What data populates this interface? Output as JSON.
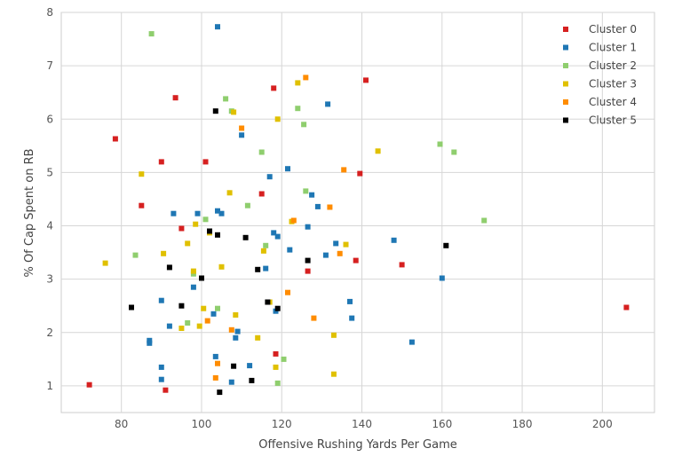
{
  "chart_data": {
    "type": "scatter",
    "xlabel": "Offensive Rushing Yards Per Game",
    "ylabel": "% Of Cap Spent on RB",
    "xlim": [
      65,
      213
    ],
    "ylim": [
      0.5,
      8.0
    ],
    "xticks": [
      80,
      100,
      120,
      140,
      160,
      180,
      200
    ],
    "yticks": [
      1,
      2,
      3,
      4,
      5,
      6,
      7,
      8
    ],
    "grid": true,
    "legend": "top-right",
    "series": [
      {
        "name": "Cluster 0",
        "color": "#d62020",
        "points": [
          [
            72,
            1.02
          ],
          [
            78.5,
            5.63
          ],
          [
            85,
            4.38
          ],
          [
            90,
            5.2
          ],
          [
            91,
            0.92
          ],
          [
            93.5,
            6.4
          ],
          [
            95,
            3.95
          ],
          [
            101,
            5.2
          ],
          [
            115,
            4.6
          ],
          [
            118,
            6.58
          ],
          [
            118.5,
            1.6
          ],
          [
            126.5,
            3.15
          ],
          [
            138.5,
            3.35
          ],
          [
            139.5,
            4.98
          ],
          [
            141,
            6.73
          ],
          [
            150,
            3.27
          ],
          [
            206,
            2.47
          ]
        ]
      },
      {
        "name": "Cluster 1",
        "color": "#1f77b4",
        "points": [
          [
            87,
            1.85
          ],
          [
            87,
            1.8
          ],
          [
            90,
            2.6
          ],
          [
            90,
            1.35
          ],
          [
            90,
            1.12
          ],
          [
            92,
            2.12
          ],
          [
            93,
            4.23
          ],
          [
            98,
            2.85
          ],
          [
            99,
            4.23
          ],
          [
            103,
            2.35
          ],
          [
            103.5,
            1.55
          ],
          [
            104,
            7.73
          ],
          [
            104,
            4.28
          ],
          [
            105,
            4.23
          ],
          [
            107.5,
            1.07
          ],
          [
            108.5,
            1.9
          ],
          [
            109,
            2.02
          ],
          [
            110,
            5.7
          ],
          [
            112,
            1.38
          ],
          [
            116,
            3.2
          ],
          [
            117,
            4.92
          ],
          [
            118,
            3.87
          ],
          [
            118.5,
            2.4
          ],
          [
            119,
            3.8
          ],
          [
            121.5,
            5.07
          ],
          [
            122,
            3.55
          ],
          [
            126.5,
            3.98
          ],
          [
            127.5,
            4.58
          ],
          [
            129,
            4.36
          ],
          [
            131,
            3.45
          ],
          [
            131.5,
            6.28
          ],
          [
            133.5,
            3.67
          ],
          [
            137,
            2.58
          ],
          [
            137.5,
            2.27
          ],
          [
            148,
            3.73
          ],
          [
            152.5,
            1.82
          ],
          [
            160,
            3.02
          ]
        ]
      },
      {
        "name": "Cluster 2",
        "color": "#8fce6e",
        "points": [
          [
            83.5,
            3.45
          ],
          [
            87.5,
            7.6
          ],
          [
            96.5,
            2.18
          ],
          [
            98,
            3.1
          ],
          [
            101,
            4.12
          ],
          [
            104,
            2.45
          ],
          [
            106,
            6.38
          ],
          [
            107.5,
            6.15
          ],
          [
            111.5,
            4.38
          ],
          [
            115,
            5.38
          ],
          [
            116,
            3.63
          ],
          [
            119,
            1.05
          ],
          [
            120.5,
            1.5
          ],
          [
            124,
            6.2
          ],
          [
            125.5,
            5.9
          ],
          [
            126,
            4.65
          ],
          [
            159.5,
            5.53
          ],
          [
            163,
            5.38
          ],
          [
            170.5,
            4.1
          ]
        ]
      },
      {
        "name": "Cluster 3",
        "color": "#e0c000",
        "points": [
          [
            76,
            3.3
          ],
          [
            85,
            4.97
          ],
          [
            90.5,
            3.48
          ],
          [
            95,
            2.08
          ],
          [
            96.5,
            3.67
          ],
          [
            98,
            3.15
          ],
          [
            98.5,
            4.03
          ],
          [
            99.5,
            2.12
          ],
          [
            100.5,
            2.45
          ],
          [
            102,
            3.87
          ],
          [
            105,
            3.23
          ],
          [
            107,
            4.62
          ],
          [
            108,
            6.13
          ],
          [
            108.5,
            2.33
          ],
          [
            114,
            1.9
          ],
          [
            115.5,
            3.53
          ],
          [
            117,
            2.57
          ],
          [
            118.5,
            1.35
          ],
          [
            119,
            6.0
          ],
          [
            122.5,
            4.08
          ],
          [
            124,
            6.68
          ],
          [
            133,
            1.95
          ],
          [
            133,
            1.22
          ],
          [
            136,
            3.65
          ],
          [
            144,
            5.4
          ]
        ]
      },
      {
        "name": "Cluster 4",
        "color": "#ff8c00",
        "points": [
          [
            101.5,
            2.22
          ],
          [
            103.5,
            1.15
          ],
          [
            104,
            1.42
          ],
          [
            107.5,
            2.05
          ],
          [
            110,
            5.83
          ],
          [
            121.5,
            2.75
          ],
          [
            123,
            4.1
          ],
          [
            126,
            6.78
          ],
          [
            128,
            2.27
          ],
          [
            132,
            4.35
          ],
          [
            134.5,
            3.48
          ],
          [
            135.5,
            5.05
          ]
        ]
      },
      {
        "name": "Cluster 5",
        "color": "#000000",
        "points": [
          [
            82.5,
            2.47
          ],
          [
            92,
            3.22
          ],
          [
            95,
            2.5
          ],
          [
            100,
            3.02
          ],
          [
            102,
            3.9
          ],
          [
            103.5,
            6.15
          ],
          [
            104,
            3.83
          ],
          [
            104.5,
            0.88
          ],
          [
            108,
            1.37
          ],
          [
            111,
            3.78
          ],
          [
            112.5,
            1.1
          ],
          [
            114,
            3.18
          ],
          [
            116.5,
            2.57
          ],
          [
            119,
            2.45
          ],
          [
            126.5,
            3.35
          ],
          [
            161,
            3.63
          ]
        ]
      }
    ]
  }
}
